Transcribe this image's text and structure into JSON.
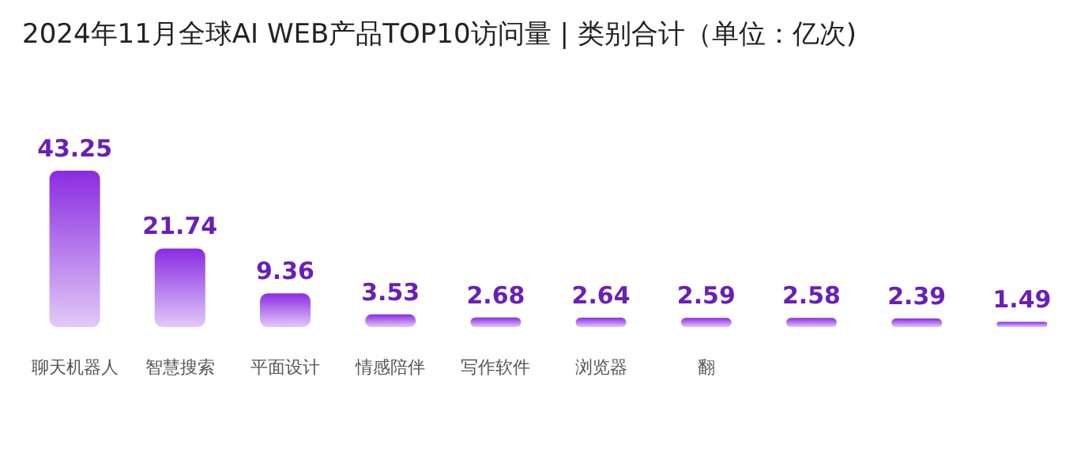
{
  "chart_data": {
    "type": "bar",
    "title": "2024年11月全球AI WEB产品TOP10访问量 | 类别合计（单位：亿次)",
    "categories": [
      "聊天机器人",
      "智慧搜索",
      "平面设计",
      "情感陪伴",
      "写作软件",
      "浏览器",
      "翻",
      null,
      null,
      null
    ],
    "values": [
      43.25,
      21.74,
      9.36,
      3.53,
      2.68,
      2.64,
      2.59,
      2.58,
      2.39,
      1.49
    ],
    "color": "#8a2be2",
    "data_labels": true
  }
}
